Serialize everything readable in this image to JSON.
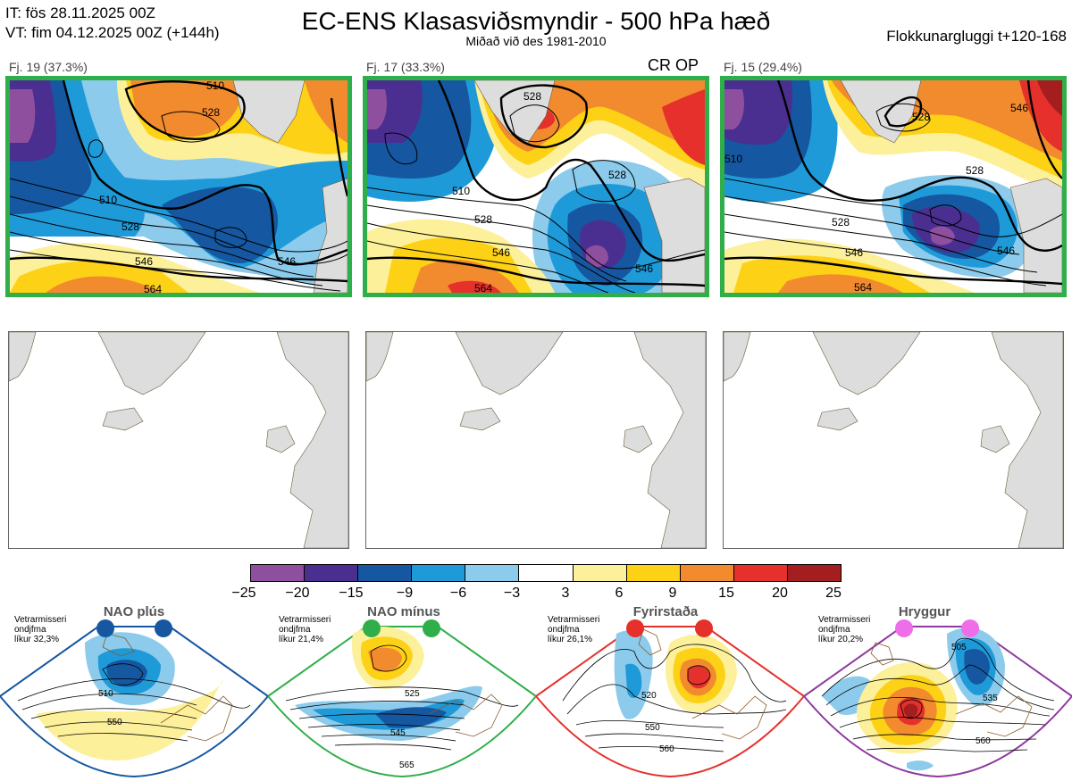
{
  "header": {
    "init_time": "IT: fös 28.11.2025 00Z",
    "valid_time": "VT: fim 04.12.2025 00Z  (+144h)",
    "title": "EC-ENS Klasasviðsmyndir - 500 hPa hæð",
    "subtitle": "Miðað við des 1981-2010",
    "window": "Flokkunargluggi t+120-168"
  },
  "clusters": [
    {
      "label": "Fj. 19 (37.3%)",
      "op_tag": "",
      "contours": [
        "510",
        "510",
        "528",
        "528",
        "546",
        "546",
        "564"
      ]
    },
    {
      "label": "Fj. 17 (33.3%)",
      "op_tag": "CR OP",
      "contours": [
        "528",
        "510",
        "528",
        "528",
        "546",
        "546",
        "564"
      ]
    },
    {
      "label": "Fj. 15 (29.4%)",
      "op_tag": "",
      "contours": [
        "528",
        "510",
        "528",
        "528",
        "546",
        "546",
        "564",
        "546"
      ]
    }
  ],
  "colorbar": {
    "ticks": [
      "−25",
      "−20",
      "−15",
      "−9",
      "−6",
      "−3",
      "3",
      "6",
      "9",
      "15",
      "20",
      "25"
    ],
    "colors": [
      "#8e4f9e",
      "#4a2f91",
      "#1557a0",
      "#1f9ad8",
      "#8ccbec",
      "#ffffff",
      "#fdf09a",
      "#fcd116",
      "#f28a2e",
      "#e6302b",
      "#a41d1f"
    ]
  },
  "regimes": [
    {
      "name": "NAO plús",
      "note": [
        "Vetrarmisseri",
        "ondjfma",
        "líkur 32,3%"
      ],
      "color": "#1557a0",
      "contours": [
        "510",
        "550"
      ]
    },
    {
      "name": "NAO mínus",
      "note": [
        "Vetrarmisseri",
        "ondjfma",
        "líkur 21,4%"
      ],
      "color": "#2fae4a",
      "contours": [
        "525",
        "545",
        "565"
      ]
    },
    {
      "name": "Fyrirstaða",
      "note": [
        "Vetrarmisseri",
        "ondjfma",
        "líkur 26,1%"
      ],
      "color": "#e6302b",
      "contours": [
        "520",
        "550",
        "560"
      ]
    },
    {
      "name": "Hryggur",
      "note": [
        "Vetrarmisseri",
        "ondjfma",
        "líkur 20,2%"
      ],
      "color": "#ee6ee9",
      "contours": [
        "505",
        "535",
        "560"
      ]
    }
  ]
}
